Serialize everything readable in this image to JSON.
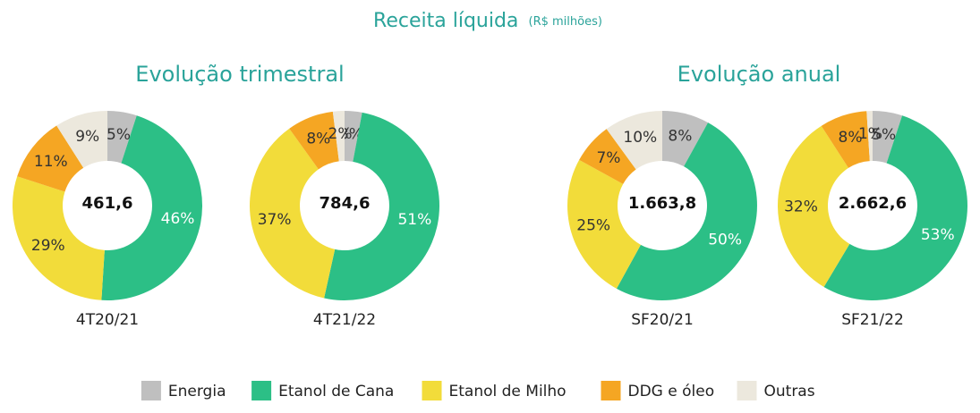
{
  "header": {
    "title": "Receita líquida",
    "subtitle": "(R$ milhões)"
  },
  "groups": [
    "Evolução trimestral",
    "Evolução anual"
  ],
  "chart_data": [
    {
      "type": "pie",
      "label": "4T20/21",
      "total": {
        "value": 461.6,
        "label": "461,6"
      },
      "categories": [
        "Energia",
        "Etanol de Cana",
        "Etanol de Milho",
        "DDG e óleo",
        "Outras"
      ],
      "colors": [
        "#bfbfbf",
        "#2cbf86",
        "#f2dc3a",
        "#f5a623",
        "#ece8dd"
      ],
      "values": [
        5,
        46,
        29,
        11,
        9
      ],
      "value_labels": [
        "5%",
        "46%",
        "29%",
        "11%",
        "9%"
      ]
    },
    {
      "type": "pie",
      "label": "4T21/22",
      "total": {
        "value": 784.6,
        "label": "784,6"
      },
      "categories": [
        "Energia",
        "Etanol de Cana",
        "Etanol de Milho",
        "DDG e óleo",
        "Outras"
      ],
      "colors": [
        "#bfbfbf",
        "#2cbf86",
        "#f2dc3a",
        "#f5a623",
        "#ece8dd"
      ],
      "values": [
        3,
        51,
        37,
        8,
        2
      ],
      "value_labels": [
        "3%",
        "51%",
        "37%",
        "8%",
        "2%"
      ]
    },
    {
      "type": "pie",
      "label": "SF20/21",
      "total": {
        "value": 1663.8,
        "label": "1.663,8"
      },
      "categories": [
        "Energia",
        "Etanol de Cana",
        "Etanol de Milho",
        "DDG e óleo",
        "Outras"
      ],
      "colors": [
        "#bfbfbf",
        "#2cbf86",
        "#f2dc3a",
        "#f5a623",
        "#ece8dd"
      ],
      "values": [
        8,
        50,
        25,
        7,
        10
      ],
      "value_labels": [
        "8%",
        "50%",
        "25%",
        "7%",
        "10%"
      ]
    },
    {
      "type": "pie",
      "label": "SF21/22",
      "total": {
        "value": 2662.6,
        "label": "2.662,6"
      },
      "categories": [
        "Energia",
        "Etanol de Cana",
        "Etanol de Milho",
        "DDG e óleo",
        "Outras"
      ],
      "colors": [
        "#bfbfbf",
        "#2cbf86",
        "#f2dc3a",
        "#f5a623",
        "#ece8dd"
      ],
      "values": [
        5,
        53,
        32,
        8,
        1
      ],
      "value_labels": [
        "5%",
        "53%",
        "32%",
        "8%",
        "1%"
      ]
    }
  ]
}
